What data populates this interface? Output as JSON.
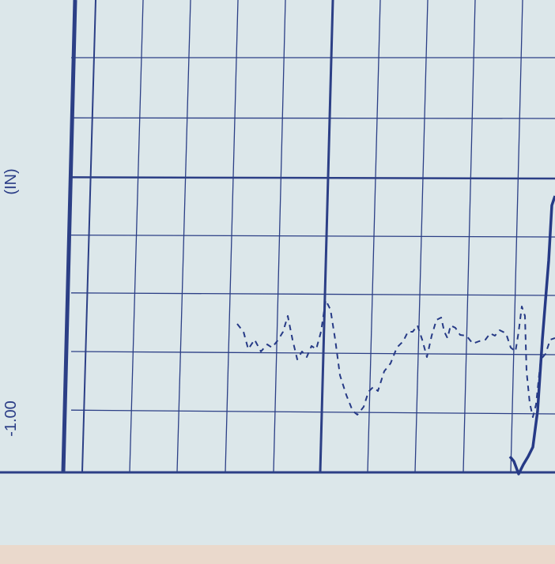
{
  "chart_data": {
    "type": "line",
    "ylabel_units": "(IN)",
    "tick_labels": [
      "-1.00"
    ],
    "grid": true,
    "colors": {
      "paper": "#dce7ea",
      "grid": "#2c3f86",
      "trace": "#263a86",
      "paper_edge": "#ead9cc"
    },
    "series": [
      {
        "style": "dashed",
        "points": [
          [
            300,
            410
          ],
          [
            308,
            420
          ],
          [
            314,
            442
          ],
          [
            322,
            430
          ],
          [
            330,
            445
          ],
          [
            338,
            436
          ],
          [
            344,
            440
          ],
          [
            352,
            430
          ],
          [
            358,
            420
          ],
          [
            364,
            400
          ],
          [
            370,
            430
          ],
          [
            376,
            455
          ],
          [
            382,
            445
          ],
          [
            388,
            452
          ],
          [
            394,
            438
          ],
          [
            400,
            442
          ],
          [
            406,
            420
          ],
          [
            412,
            380
          ],
          [
            418,
            392
          ],
          [
            424,
            430
          ],
          [
            430,
            475
          ],
          [
            438,
            500
          ],
          [
            446,
            520
          ],
          [
            452,
            525
          ],
          [
            460,
            515
          ],
          [
            466,
            496
          ],
          [
            472,
            490
          ],
          [
            478,
            495
          ],
          [
            486,
            470
          ],
          [
            494,
            460
          ],
          [
            502,
            440
          ],
          [
            510,
            432
          ],
          [
            516,
            420
          ],
          [
            522,
            420
          ],
          [
            528,
            412
          ],
          [
            534,
            430
          ],
          [
            540,
            452
          ],
          [
            546,
            425
          ],
          [
            552,
            405
          ],
          [
            558,
            402
          ],
          [
            562,
            420
          ],
          [
            566,
            428
          ],
          [
            570,
            412
          ],
          [
            576,
            415
          ],
          [
            582,
            424
          ],
          [
            590,
            425
          ],
          [
            598,
            435
          ],
          [
            606,
            432
          ],
          [
            614,
            430
          ],
          [
            620,
            422
          ],
          [
            626,
            425
          ],
          [
            632,
            418
          ],
          [
            640,
            422
          ],
          [
            646,
            440
          ],
          [
            652,
            445
          ],
          [
            656,
            420
          ],
          [
            660,
            388
          ],
          [
            664,
            400
          ],
          [
            666,
            470
          ],
          [
            670,
            510
          ],
          [
            674,
            528
          ],
          [
            678,
            512
          ],
          [
            684,
            455
          ],
          [
            690,
            448
          ],
          [
            696,
            430
          ],
          [
            702,
            428
          ]
        ]
      },
      {
        "style": "solid",
        "points": [
          [
            645,
            578
          ],
          [
            650,
            584
          ],
          [
            656,
            600
          ],
          [
            662,
            588
          ],
          [
            668,
            578
          ],
          [
            674,
            566
          ],
          [
            680,
            520
          ],
          [
            686,
            430
          ],
          [
            690,
            380
          ],
          [
            694,
            330
          ],
          [
            698,
            260
          ],
          [
            702,
            248
          ]
        ]
      }
    ]
  }
}
